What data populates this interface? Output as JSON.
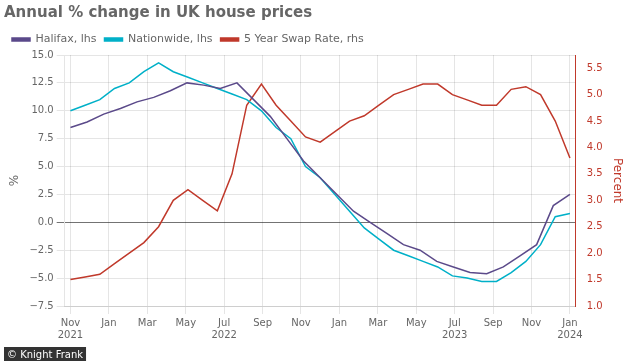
{
  "chart_data": {
    "type": "line",
    "title": "Annual % change in UK house prices",
    "annotations": [
      "© Knight Frank"
    ],
    "ylabel": "%",
    "y2label": "Percent",
    "grid": true,
    "legend": "top left",
    "xlim": [
      -0.3,
      26.3
    ],
    "xticks": [
      {
        "value": 0,
        "label": "Nov\n2021"
      },
      {
        "value": 2,
        "label": "Jan"
      },
      {
        "value": 4,
        "label": "Mar"
      },
      {
        "value": 6,
        "label": "May"
      },
      {
        "value": 8,
        "label": "Jul\n2022"
      },
      {
        "value": 10,
        "label": "Sep"
      },
      {
        "value": 12,
        "label": "Nov"
      },
      {
        "value": 14,
        "label": "Jan"
      },
      {
        "value": 16,
        "label": "Mar"
      },
      {
        "value": 18,
        "label": "May"
      },
      {
        "value": 20,
        "label": "Jul\n2023"
      },
      {
        "value": 22,
        "label": "Sep"
      },
      {
        "value": 24,
        "label": "Nov"
      },
      {
        "value": 26,
        "label": "Jan\n2024"
      }
    ],
    "ylim": [
      -7.5,
      15.0
    ],
    "yticks": [
      {
        "value": -7.5,
        "label": "−7.5"
      },
      {
        "value": -5.0,
        "label": "−5.0"
      },
      {
        "value": -2.5,
        "label": "−2.5"
      },
      {
        "value": 0.0,
        "label": "0.0"
      },
      2.5,
      {
        "value": 5.0,
        "label": "5.0"
      },
      7.5,
      {
        "value": 10.0,
        "label": "10.0"
      },
      12.5,
      {
        "value": 15.0,
        "label": "15.0"
      }
    ],
    "y2lim": [
      1.0,
      5.75
    ],
    "y2ticks": [
      {
        "value": 1.0,
        "label": "1.0"
      },
      1.5,
      {
        "value": 2.0,
        "label": "2.0"
      },
      2.5,
      {
        "value": 3.0,
        "label": "3.0"
      },
      3.5,
      {
        "value": 4.0,
        "label": "4.0"
      },
      4.5,
      {
        "value": 5.0,
        "label": "5.0"
      },
      5.5
    ],
    "series": [
      {
        "name": "Halifax, lhs",
        "color": "#5b4a8a",
        "x": [
          0,
          0.8666666666666667,
          1.7333333333333334,
          2.6,
          3.466666666666667,
          4.333333333333333,
          5.2,
          6.066666666666666,
          6.933333333333334,
          7.8,
          8.666666666666666,
          9.533333333333333,
          10.4,
          11.266666666666667,
          12.133333333333333,
          13,
          13.866666666666667,
          14.733333333333333,
          15.6,
          16.466666666666665,
          17.333333333333332,
          18.2,
          19.066666666666666,
          19.933333333333334,
          20.8,
          21.666666666666668,
          22.533333333333335,
          23.4,
          24.266666666666666,
          25.133333333333333,
          26
        ],
        "values": [
          8.5,
          9.0,
          9.7,
          10.2,
          10.8,
          11.2,
          11.8,
          12.5,
          12.3,
          12.0,
          12.5,
          11.0,
          9.5,
          7.5,
          5.5,
          4.0,
          2.5,
          1.0,
          0.0,
          -1.0,
          -2.0,
          -2.5,
          -3.5,
          -4.0,
          -4.5,
          -4.6,
          -4.0,
          -3.0,
          -2.0,
          1.5,
          2.5
        ]
      },
      {
        "name": "Nationwide, lhs",
        "color": "#00b0c8",
        "x": [
          0,
          0.7647058823529411,
          1.5294117647058822,
          2.2941176470588234,
          3.0588235294117645,
          3.823529411764706,
          4.588235294117647,
          5.352941176470588,
          6.117647058823529,
          6.882352941176471,
          7.647058823529412,
          8.411764705882353,
          9.176470588235293,
          9.941176470588236,
          10.705882352941176,
          11.470588235294118,
          12.235294117647058,
          13,
          13.764705882352942,
          14.529411764705882,
          15.294117647058824,
          16.058823529411764,
          16.823529411764707,
          17.58823529411765,
          18.352941176470587,
          19.11764705882353,
          19.88235294117647,
          20.647058823529413,
          21.41176470588235,
          22.176470588235293,
          22.941176470588236,
          23.705882352941178,
          24.470588235294116,
          25.235294117647058,
          26
        ],
        "values": [
          10.0,
          10.5,
          11.0,
          12.0,
          12.5,
          13.5,
          14.3,
          13.5,
          13.0,
          12.5,
          12.0,
          11.5,
          11.0,
          10.0,
          8.5,
          7.5,
          5.0,
          4.0,
          2.5,
          1.0,
          -0.5,
          -1.5,
          -2.5,
          -3.0,
          -3.5,
          -4.0,
          -4.8,
          -5.0,
          -5.3,
          -5.3,
          -4.5,
          -3.5,
          -2.0,
          0.5,
          0.8
        ]
      },
      {
        "name": "5 Year Swap Rate, rhs",
        "color": "#c0392b",
        "axis": "y2",
        "x": [
          0,
          0.7647058823529411,
          1.5294117647058822,
          2.2941176470588234,
          3.0588235294117645,
          3.823529411764706,
          4.588235294117647,
          5.352941176470588,
          6.117647058823529,
          6.882352941176471,
          7.647058823529412,
          8.411764705882353,
          9.176470588235293,
          9.941176470588236,
          10.705882352941176,
          11.470588235294118,
          12.235294117647058,
          13,
          13.764705882352942,
          14.529411764705882,
          15.294117647058824,
          16.058823529411764,
          16.823529411764707,
          17.58823529411765,
          18.352941176470587,
          19.11764705882353,
          19.88235294117647,
          20.647058823529413,
          21.41176470588235,
          22.176470588235293,
          22.941176470588236,
          23.705882352941178,
          24.470588235294116,
          25.235294117647058,
          26
        ],
        "values": [
          1.5,
          1.55,
          1.6,
          1.8,
          2.0,
          2.2,
          2.5,
          3.0,
          3.2,
          3.0,
          2.8,
          3.5,
          4.8,
          5.2,
          4.8,
          4.5,
          4.2,
          4.1,
          4.3,
          4.5,
          4.6,
          4.8,
          5.0,
          5.1,
          5.2,
          5.2,
          5.0,
          4.9,
          4.8,
          4.8,
          5.1,
          5.15,
          5.0,
          4.5,
          3.8
        ]
      }
    ]
  }
}
